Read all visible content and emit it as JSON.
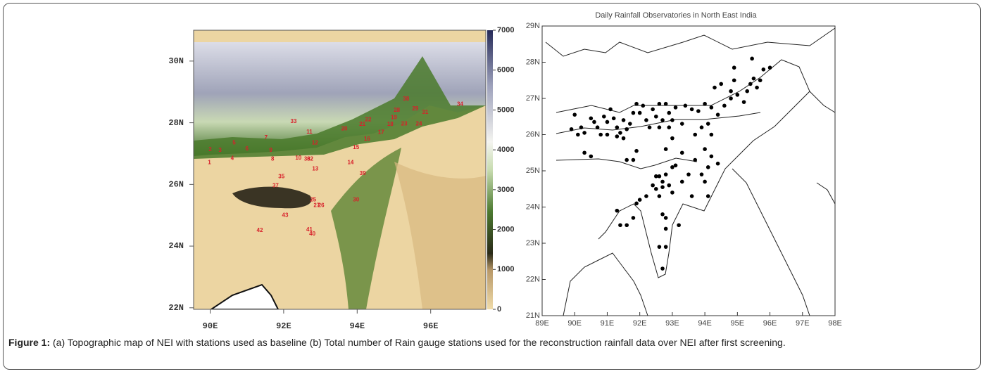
{
  "chart_data": [
    {
      "type": "map",
      "xlim": [
        89.55,
        97.5
      ],
      "ylim": [
        21.95,
        31.0
      ],
      "xticks": [
        {
          "value": 90,
          "label": "90E"
        },
        {
          "value": 92,
          "label": "92E"
        },
        {
          "value": 94,
          "label": "94E"
        },
        {
          "value": 96,
          "label": "96E"
        }
      ],
      "yticks": [
        {
          "value": 22,
          "label": "22N"
        },
        {
          "value": 24,
          "label": "24N"
        },
        {
          "value": 26,
          "label": "26N"
        },
        {
          "value": 28,
          "label": "28N"
        },
        {
          "value": 30,
          "label": "30N"
        }
      ],
      "colorbar": {
        "lim": [
          0,
          7000
        ],
        "ticks": [
          0,
          1000,
          2000,
          3000,
          4000,
          5000,
          6000,
          7000
        ]
      },
      "color": "#d8202a",
      "stations": {
        "labels": [
          "1",
          "2",
          "3",
          "4",
          "5",
          "6",
          "7",
          "8",
          "9",
          "10",
          "11",
          "12",
          "13",
          "14",
          "15",
          "16",
          "17",
          "18",
          "19",
          "20",
          "21",
          "22",
          "23",
          "24",
          "25",
          "26",
          "27",
          "28",
          "29",
          "30",
          "31",
          "32",
          "33",
          "34",
          "35",
          "36",
          "37",
          "38",
          "39",
          "40",
          "41",
          "42",
          "43"
        ],
        "x": [
          89.98,
          90.0,
          90.27,
          90.6,
          90.65,
          91.0,
          91.52,
          91.7,
          91.65,
          92.4,
          92.7,
          92.85,
          92.86,
          93.82,
          93.97,
          94.27,
          94.65,
          94.9,
          95.0,
          93.65,
          94.14,
          94.3,
          95.28,
          95.68,
          92.8,
          93.02,
          92.9,
          95.08,
          95.58,
          93.97,
          95.85,
          92.72,
          92.27,
          96.8,
          91.94,
          92.64,
          91.78,
          95.33,
          94.15,
          92.78,
          92.7,
          91.35,
          92.04
        ],
        "y": [
          26.7,
          27.13,
          27.1,
          26.84,
          27.34,
          27.15,
          27.52,
          26.82,
          27.1,
          26.85,
          27.7,
          27.34,
          26.5,
          26.7,
          27.2,
          27.47,
          27.68,
          27.95,
          28.17,
          27.8,
          27.95,
          28.1,
          27.96,
          27.96,
          25.5,
          25.31,
          25.31,
          28.4,
          28.45,
          25.5,
          28.33,
          26.82,
          28.04,
          28.6,
          26.25,
          26.82,
          25.95,
          28.77,
          26.35,
          24.39,
          24.53,
          24.5,
          25.0
        ]
      }
    },
    {
      "type": "scatter",
      "title": "Daily Rainfall Observatories in North East India",
      "xlim": [
        89,
        98
      ],
      "ylim": [
        21,
        29
      ],
      "xticks": [
        {
          "value": 89,
          "label": "89E"
        },
        {
          "value": 90,
          "label": "90E"
        },
        {
          "value": 91,
          "label": "91E"
        },
        {
          "value": 92,
          "label": "92E"
        },
        {
          "value": 93,
          "label": "93E"
        },
        {
          "value": 94,
          "label": "94E"
        },
        {
          "value": 95,
          "label": "95E"
        },
        {
          "value": 96,
          "label": "96E"
        },
        {
          "value": 97,
          "label": "97E"
        },
        {
          "value": 98,
          "label": "98E"
        }
      ],
      "yticks": [
        {
          "value": 21,
          "label": "21N"
        },
        {
          "value": 22,
          "label": "22N"
        },
        {
          "value": 23,
          "label": "23N"
        },
        {
          "value": 24,
          "label": "24N"
        },
        {
          "value": 25,
          "label": "25N"
        },
        {
          "value": 26,
          "label": "26N"
        },
        {
          "value": 27,
          "label": "27N"
        },
        {
          "value": 28,
          "label": "28N"
        },
        {
          "value": 29,
          "label": "29N"
        }
      ],
      "color": "#000000",
      "x": [
        89.9,
        90.0,
        90.2,
        90.1,
        90.3,
        90.5,
        90.6,
        90.7,
        90.8,
        90.9,
        91.0,
        91.1,
        91.2,
        91.3,
        91.4,
        91.5,
        91.6,
        91.5,
        91.3,
        91.0,
        90.3,
        90.5,
        91.6,
        91.8,
        91.9,
        91.7,
        91.8,
        91.9,
        92.0,
        92.1,
        92.2,
        92.3,
        92.4,
        92.5,
        92.6,
        92.6,
        92.7,
        92.8,
        92.9,
        93.1,
        93.3,
        93.4,
        93.6,
        93.8,
        94.0,
        94.2,
        94.4,
        94.6,
        94.8,
        95.0,
        95.2,
        95.3,
        94.3,
        94.5,
        94.8,
        94.9,
        95.4,
        95.5,
        95.6,
        95.8,
        96.0,
        95.7,
        94.9,
        95.45,
        93.9,
        94.1,
        93.7,
        94.2,
        93.0,
        92.9,
        93.0,
        92.8,
        93.3,
        93.7,
        94.0,
        94.2,
        94.1,
        94.4,
        92.5,
        92.6,
        92.7,
        92.8,
        92.9,
        93.0,
        93.1,
        92.4,
        92.5,
        92.2,
        92.0,
        91.9,
        92.6,
        93.0,
        92.7,
        93.9,
        94.0,
        94.1,
        93.6,
        91.3,
        91.4,
        91.6,
        91.8,
        92.7,
        92.8,
        92.8,
        92.6,
        92.8,
        93.2,
        92.7,
        93.5,
        93.3
      ],
      "values": [
        26.15,
        26.55,
        26.2,
        26.0,
        26.05,
        26.45,
        26.35,
        26.2,
        26.0,
        26.5,
        26.35,
        26.7,
        26.45,
        26.2,
        26.05,
        26.4,
        26.15,
        25.9,
        25.95,
        26.0,
        25.5,
        25.4,
        25.3,
        25.3,
        25.55,
        26.3,
        26.6,
        26.85,
        26.6,
        26.8,
        26.4,
        26.2,
        26.7,
        26.5,
        26.2,
        26.85,
        26.4,
        26.85,
        26.6,
        26.75,
        26.3,
        26.8,
        26.7,
        26.65,
        26.85,
        26.75,
        26.55,
        26.8,
        27.0,
        27.1,
        26.9,
        27.2,
        27.3,
        27.4,
        27.2,
        27.5,
        27.4,
        27.55,
        27.3,
        27.8,
        27.85,
        27.5,
        27.85,
        28.1,
        26.2,
        26.3,
        26.0,
        26.0,
        26.4,
        26.2,
        25.9,
        25.6,
        25.5,
        25.3,
        25.6,
        25.4,
        25.1,
        25.2,
        24.85,
        24.85,
        24.7,
        24.9,
        24.6,
        25.1,
        25.15,
        24.6,
        24.5,
        24.3,
        24.2,
        24.1,
        24.3,
        24.4,
        24.55,
        24.9,
        24.7,
        24.3,
        24.3,
        23.9,
        23.5,
        23.5,
        23.7,
        23.8,
        23.7,
        23.4,
        22.9,
        22.9,
        23.5,
        22.3,
        24.9,
        24.7
      ]
    }
  ],
  "caption": {
    "label": "Figure 1:",
    "text": "(a) Topographic map of NEI with stations used as baseline (b) Total number of Rain gauge stations used for the reconstruction rainfall data over NEI after first screening."
  }
}
